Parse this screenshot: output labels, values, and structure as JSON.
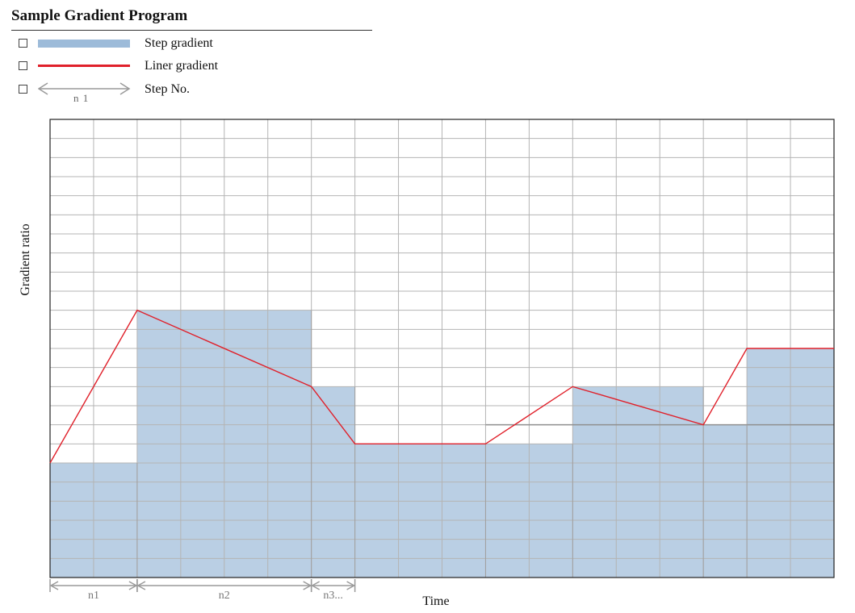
{
  "title": "Sample Gradient Program",
  "legend": {
    "step": {
      "label": "Step gradient",
      "color": "#9dbbd9",
      "checked": false
    },
    "linear": {
      "label": "Liner gradient",
      "color": "#e0202a",
      "checked": false
    },
    "stepno": {
      "label": "Step No.",
      "arrow_text": "n 1",
      "checked": false
    }
  },
  "axes": {
    "ylabel": "Gradient ratio",
    "xlabel": "Time"
  },
  "chart_data": {
    "type": "area",
    "grid": true,
    "x_range": [
      0,
      18
    ],
    "y_range": [
      0,
      24
    ],
    "step_gradient": [
      {
        "x_start": 0,
        "x_end": 2,
        "value": 6
      },
      {
        "x_start": 2,
        "x_end": 6,
        "value": 14
      },
      {
        "x_start": 6,
        "x_end": 7,
        "value": 10
      },
      {
        "x_start": 7,
        "x_end": 10,
        "value": 7
      },
      {
        "x_start": 10,
        "x_end": 12,
        "value": 7
      },
      {
        "x_start": 12,
        "x_end": 15,
        "value": 10
      },
      {
        "x_start": 15,
        "x_end": 16,
        "value": 8
      },
      {
        "x_start": 16,
        "x_end": 18,
        "value": 12
      }
    ],
    "linear_gradient": [
      [
        0,
        6
      ],
      [
        2,
        14
      ],
      [
        6,
        10
      ],
      [
        7,
        7
      ],
      [
        10,
        7
      ],
      [
        12,
        10
      ],
      [
        15,
        8
      ],
      [
        16,
        12
      ],
      [
        18,
        12
      ]
    ],
    "extra_line": {
      "x_start": 10,
      "x_end": 18,
      "value": 8
    },
    "step_numbers": [
      {
        "label": "n1",
        "x_start": 0,
        "x_end": 2
      },
      {
        "label": "n2",
        "x_start": 2,
        "x_end": 6
      },
      {
        "label": "n3...",
        "x_start": 6,
        "x_end": 7
      }
    ]
  }
}
